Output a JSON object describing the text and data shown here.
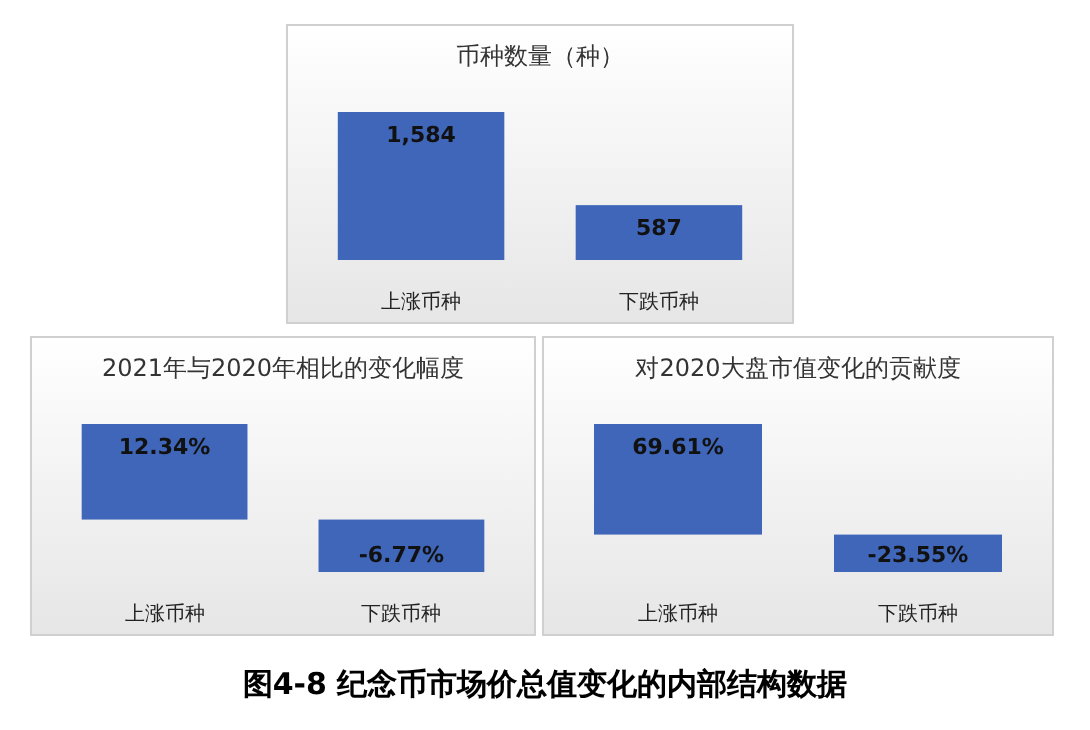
{
  "chart_data": [
    {
      "type": "bar",
      "title": "币种数量（种）",
      "categories": [
        "上涨币种",
        "下跌币种"
      ],
      "values": [
        1584,
        587
      ],
      "value_labels": [
        "1,584",
        "587"
      ],
      "color": "#3f66b8"
    },
    {
      "type": "bar",
      "title": "2021年与2020年相比的变化幅度",
      "categories": [
        "上涨币种",
        "下跌币种"
      ],
      "values": [
        12.34,
        -6.77
      ],
      "value_labels": [
        "12.34%",
        "-6.77%"
      ],
      "color": "#3f66b8"
    },
    {
      "type": "bar",
      "title": "对2020大盘市值变化的贡献度",
      "categories": [
        "上涨币种",
        "下跌币种"
      ],
      "values": [
        69.61,
        -23.55
      ],
      "value_labels": [
        "69.61%",
        "-23.55%"
      ],
      "color": "#3f66b8",
      "annotations": [
        "图4-8  纪念币市场价总值变化的内部结构数据"
      ]
    }
  ]
}
